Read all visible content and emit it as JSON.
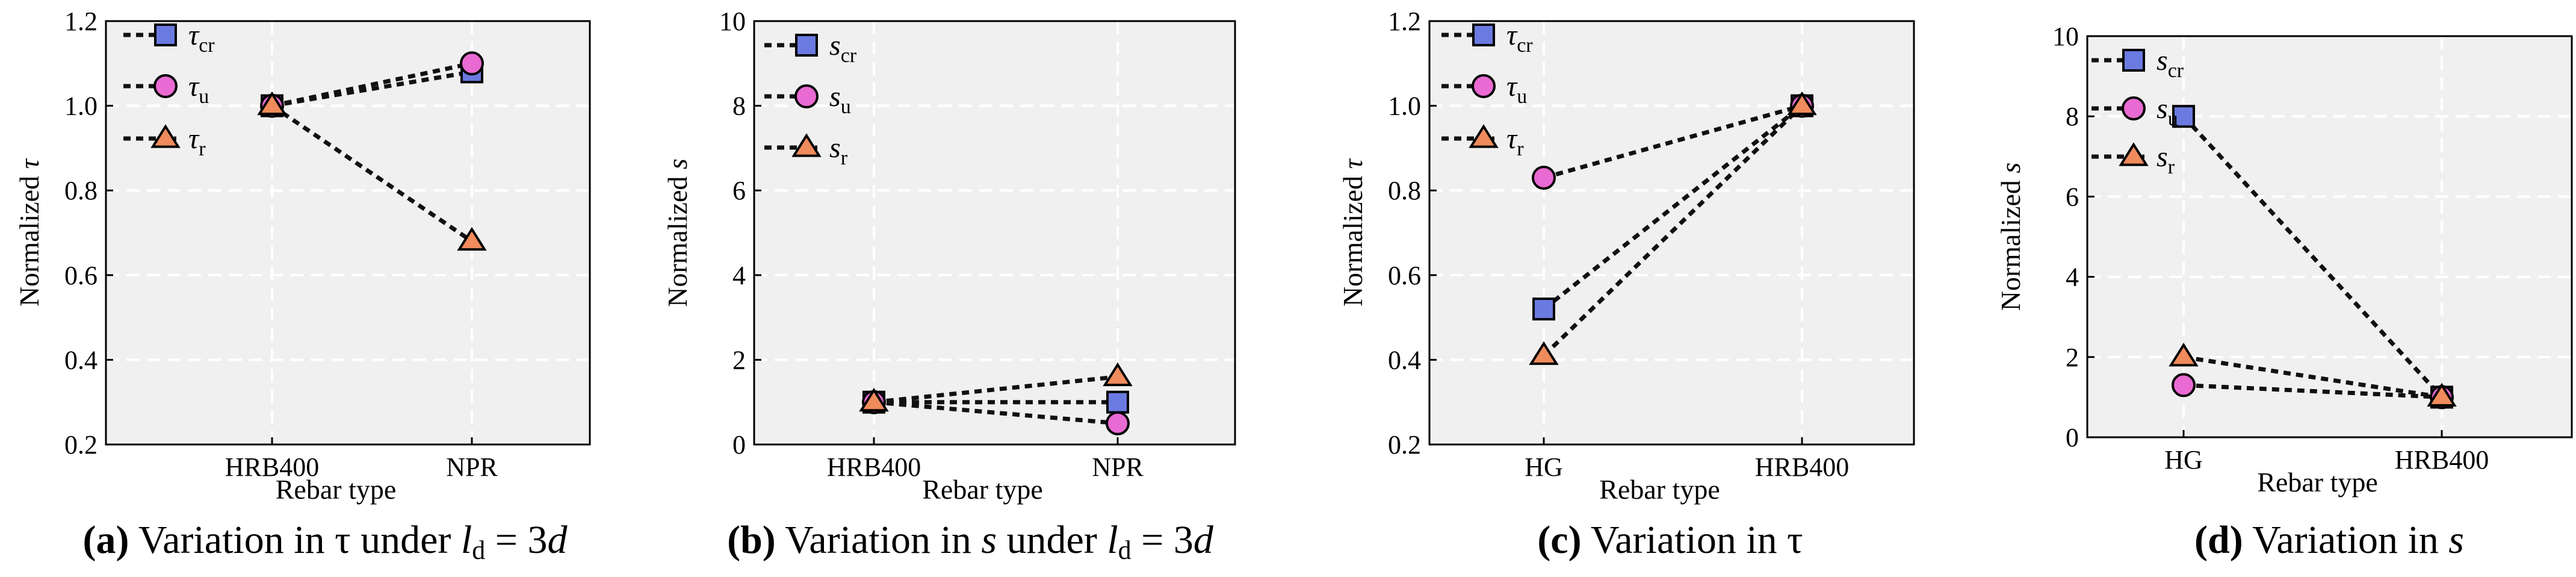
{
  "colors": {
    "plot_bg": "#f0f0f0",
    "grid": "#ffffff",
    "square": "#6a7ae0",
    "circle": "#e96ad2",
    "triangle": "#ef8b5c",
    "line": "#111111"
  },
  "chart_data": [
    {
      "type": "line",
      "panel": "a",
      "categories": [
        "HRB400",
        "NPR"
      ],
      "xlabel": "Rebar type",
      "ylabel": "Normalized τ",
      "ylim": [
        0.2,
        1.2
      ],
      "yticks": [
        "0.2",
        "0.4",
        "0.6",
        "0.8",
        "1.0",
        "1.2"
      ],
      "ytick_values": [
        0.2,
        0.4,
        0.6,
        0.8,
        1.0,
        1.2
      ],
      "series": [
        {
          "name": "τcr",
          "base": "τ",
          "sub": "cr",
          "marker": "square",
          "values": [
            1.0,
            1.08
          ]
        },
        {
          "name": "τu",
          "base": "τ",
          "sub": "u",
          "marker": "circle",
          "values": [
            1.0,
            1.1
          ]
        },
        {
          "name": "τr",
          "base": "τ",
          "sub": "r",
          "marker": "triangle",
          "values": [
            1.0,
            0.68
          ]
        }
      ],
      "caption": {
        "label": "(a)",
        "text": "Variation in τ under ",
        "ld": "l",
        "ld_sub": "d",
        "tail": " = 3",
        "d": "d"
      }
    },
    {
      "type": "line",
      "panel": "b",
      "categories": [
        "HRB400",
        "NPR"
      ],
      "xlabel": "Rebar type",
      "ylabel": "Normalized s",
      "ylim": [
        0,
        10
      ],
      "yticks": [
        "0",
        "2",
        "4",
        "6",
        "8",
        "10"
      ],
      "ytick_values": [
        0,
        2,
        4,
        6,
        8,
        10
      ],
      "series": [
        {
          "name": "scr",
          "base": "s",
          "sub": "cr",
          "marker": "square",
          "values": [
            1.0,
            1.0
          ]
        },
        {
          "name": "su",
          "base": "s",
          "sub": "u",
          "marker": "circle",
          "values": [
            1.0,
            0.5
          ]
        },
        {
          "name": "sr",
          "base": "s",
          "sub": "r",
          "marker": "triangle",
          "values": [
            1.0,
            1.6
          ]
        }
      ],
      "caption": {
        "label": "(b)",
        "text": "Variation in s under ",
        "ld": "l",
        "ld_sub": "d",
        "tail": " = 3",
        "d": "d"
      }
    },
    {
      "type": "line",
      "panel": "c",
      "categories": [
        "HG",
        "HRB400"
      ],
      "xlabel": "Rebar type",
      "ylabel": "Normalized τ",
      "ylim": [
        0.2,
        1.2
      ],
      "yticks": [
        "0.2",
        "0.4",
        "0.6",
        "0.8",
        "1.0",
        "1.2"
      ],
      "ytick_values": [
        0.2,
        0.4,
        0.6,
        0.8,
        1.0,
        1.2
      ],
      "series": [
        {
          "name": "τcr",
          "base": "τ",
          "sub": "cr",
          "marker": "square",
          "values": [
            0.52,
            1.0
          ]
        },
        {
          "name": "τu",
          "base": "τ",
          "sub": "u",
          "marker": "circle",
          "values": [
            0.83,
            1.0
          ]
        },
        {
          "name": "τr",
          "base": "τ",
          "sub": "r",
          "marker": "triangle",
          "values": [
            0.41,
            1.0
          ]
        }
      ],
      "caption": {
        "label": "(c)",
        "text": "Variation in τ"
      }
    },
    {
      "type": "line",
      "panel": "d",
      "categories": [
        "HG",
        "HRB400"
      ],
      "xlabel": "Rebar type",
      "ylabel": "Normalized s",
      "ylim": [
        0,
        10
      ],
      "yticks": [
        "0",
        "2",
        "4",
        "6",
        "8",
        "10"
      ],
      "ytick_values": [
        0,
        2,
        4,
        6,
        8,
        10
      ],
      "series": [
        {
          "name": "scr",
          "base": "s",
          "sub": "cr",
          "marker": "square",
          "values": [
            8.0,
            1.0
          ]
        },
        {
          "name": "su",
          "base": "s",
          "sub": "u",
          "marker": "circle",
          "values": [
            1.3,
            1.0
          ]
        },
        {
          "name": "sr",
          "base": "s",
          "sub": "r",
          "marker": "triangle",
          "values": [
            2.0,
            1.0
          ]
        }
      ],
      "caption": {
        "label": "(d)",
        "text": "Variation in s"
      }
    }
  ]
}
